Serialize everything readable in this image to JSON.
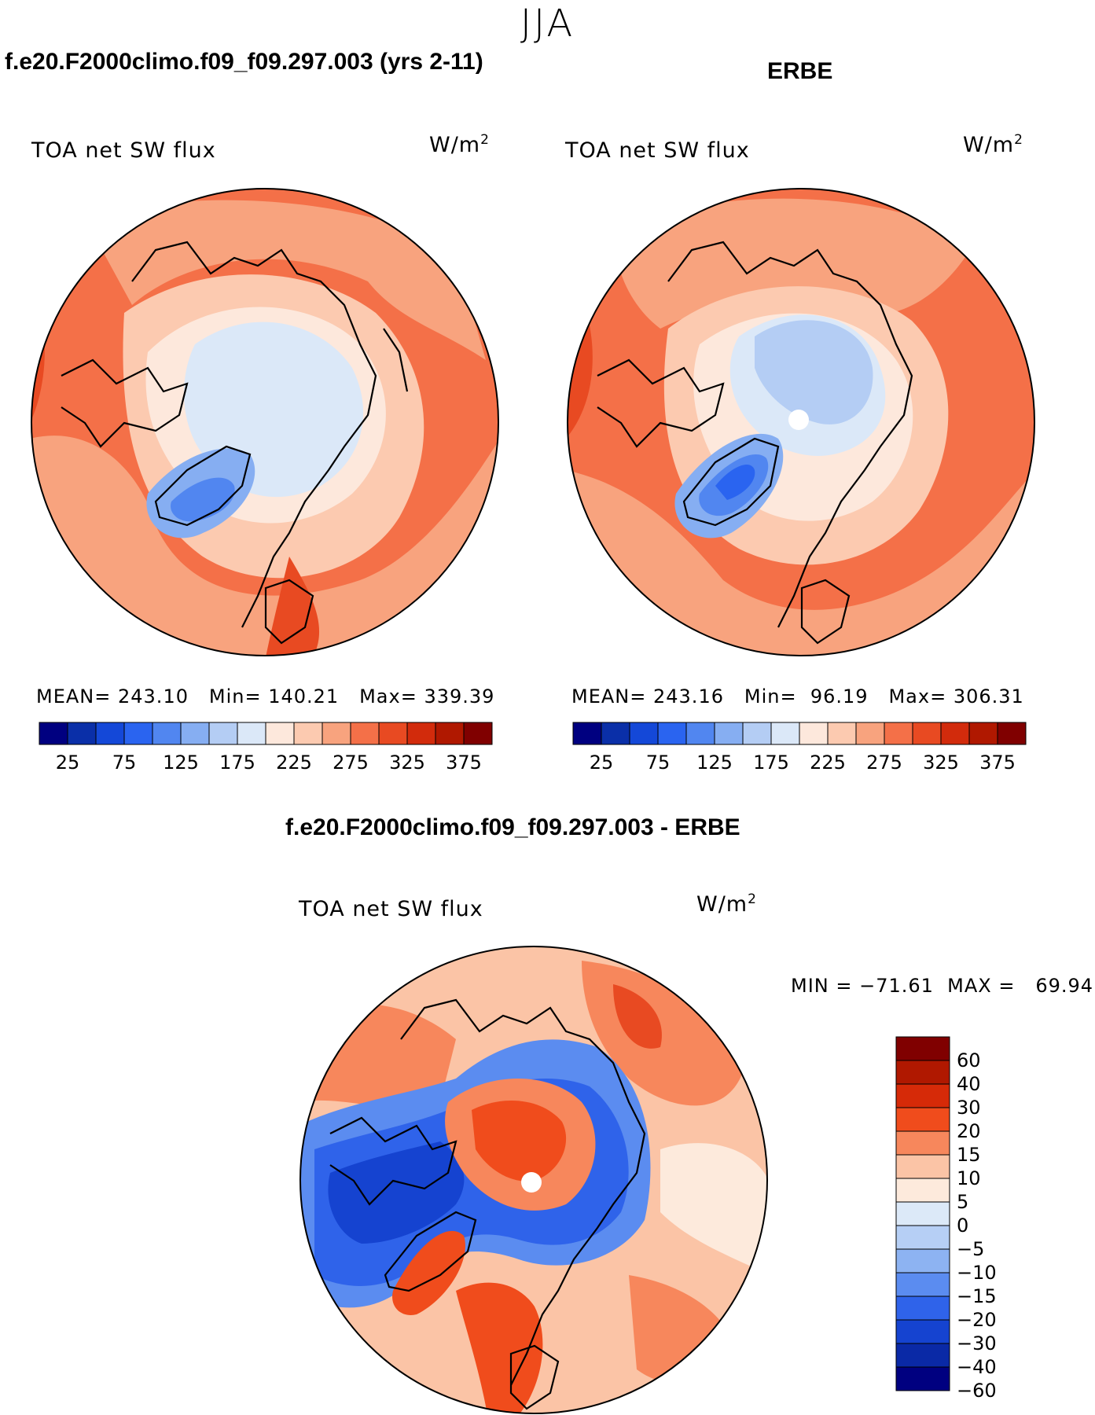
{
  "figure_title": "JJA",
  "panels": [
    {
      "heading": "f.e20.F2000climo.f09_f09.297.003 (yrs 2-11)",
      "variable": "TOA net SW flux",
      "units": "W/m",
      "units_sup": "2",
      "stats": {
        "mean_label": "MEAN=",
        "mean": "243.10",
        "min_label": "Min=",
        "min": "140.21",
        "max_label": "Max=",
        "max": "339.39"
      }
    },
    {
      "heading": "ERBE",
      "variable": "TOA net SW flux",
      "units": "W/m",
      "units_sup": "2",
      "stats": {
        "mean_label": "MEAN=",
        "mean": "243.16",
        "min_label": "Min=",
        "min": "96.19",
        "max_label": "Max=",
        "max": "306.31"
      }
    },
    {
      "heading": "f.e20.F2000climo.f09_f09.297.003 - ERBE",
      "variable": "TOA net SW flux",
      "units": "W/m",
      "units_sup": "2",
      "stats": {
        "text": "MIN = −71.61  MAX =   69.94"
      }
    }
  ],
  "colorbar_abs": {
    "colors": [
      "#000080",
      "#0a2fa8",
      "#1448d8",
      "#2a64f0",
      "#5186f0",
      "#86aef2",
      "#b4cdf4",
      "#dbe8f8",
      "#fde8dc",
      "#fccab0",
      "#f8a37e",
      "#f47048",
      "#e84a22",
      "#d22b0c",
      "#b01800",
      "#800000"
    ],
    "labels": [
      "25",
      "75",
      "125",
      "175",
      "225",
      "275",
      "325",
      "375"
    ]
  },
  "colorbar_diff": {
    "colors": [
      "#800000",
      "#b01800",
      "#d62a08",
      "#f04c1c",
      "#f7875c",
      "#fbc4a6",
      "#fdeadc",
      "#dce9f8",
      "#b6cff5",
      "#8db3f2",
      "#5b8cf0",
      "#2f63ea",
      "#1543d0",
      "#0a29a6",
      "#000080"
    ],
    "labels": [
      "60",
      "40",
      "30",
      "20",
      "15",
      "10",
      "5",
      "0",
      "−5",
      "−10",
      "−15",
      "−20",
      "−30",
      "−40",
      "−60"
    ]
  },
  "map_colors": {
    "ocean_warm": "#f47048",
    "mid": "#f8a37e",
    "light": "#fccab0",
    "pale": "#fde8dc",
    "ice": "#dbe8f8",
    "ice2": "#b4cdf4",
    "blue": "#86aef2",
    "blue2": "#5186f0",
    "red": "#e84a22",
    "diff_pos": "#f7875c",
    "diff_neg": "#2f63ea",
    "diff_pale": "#fdeadc"
  }
}
